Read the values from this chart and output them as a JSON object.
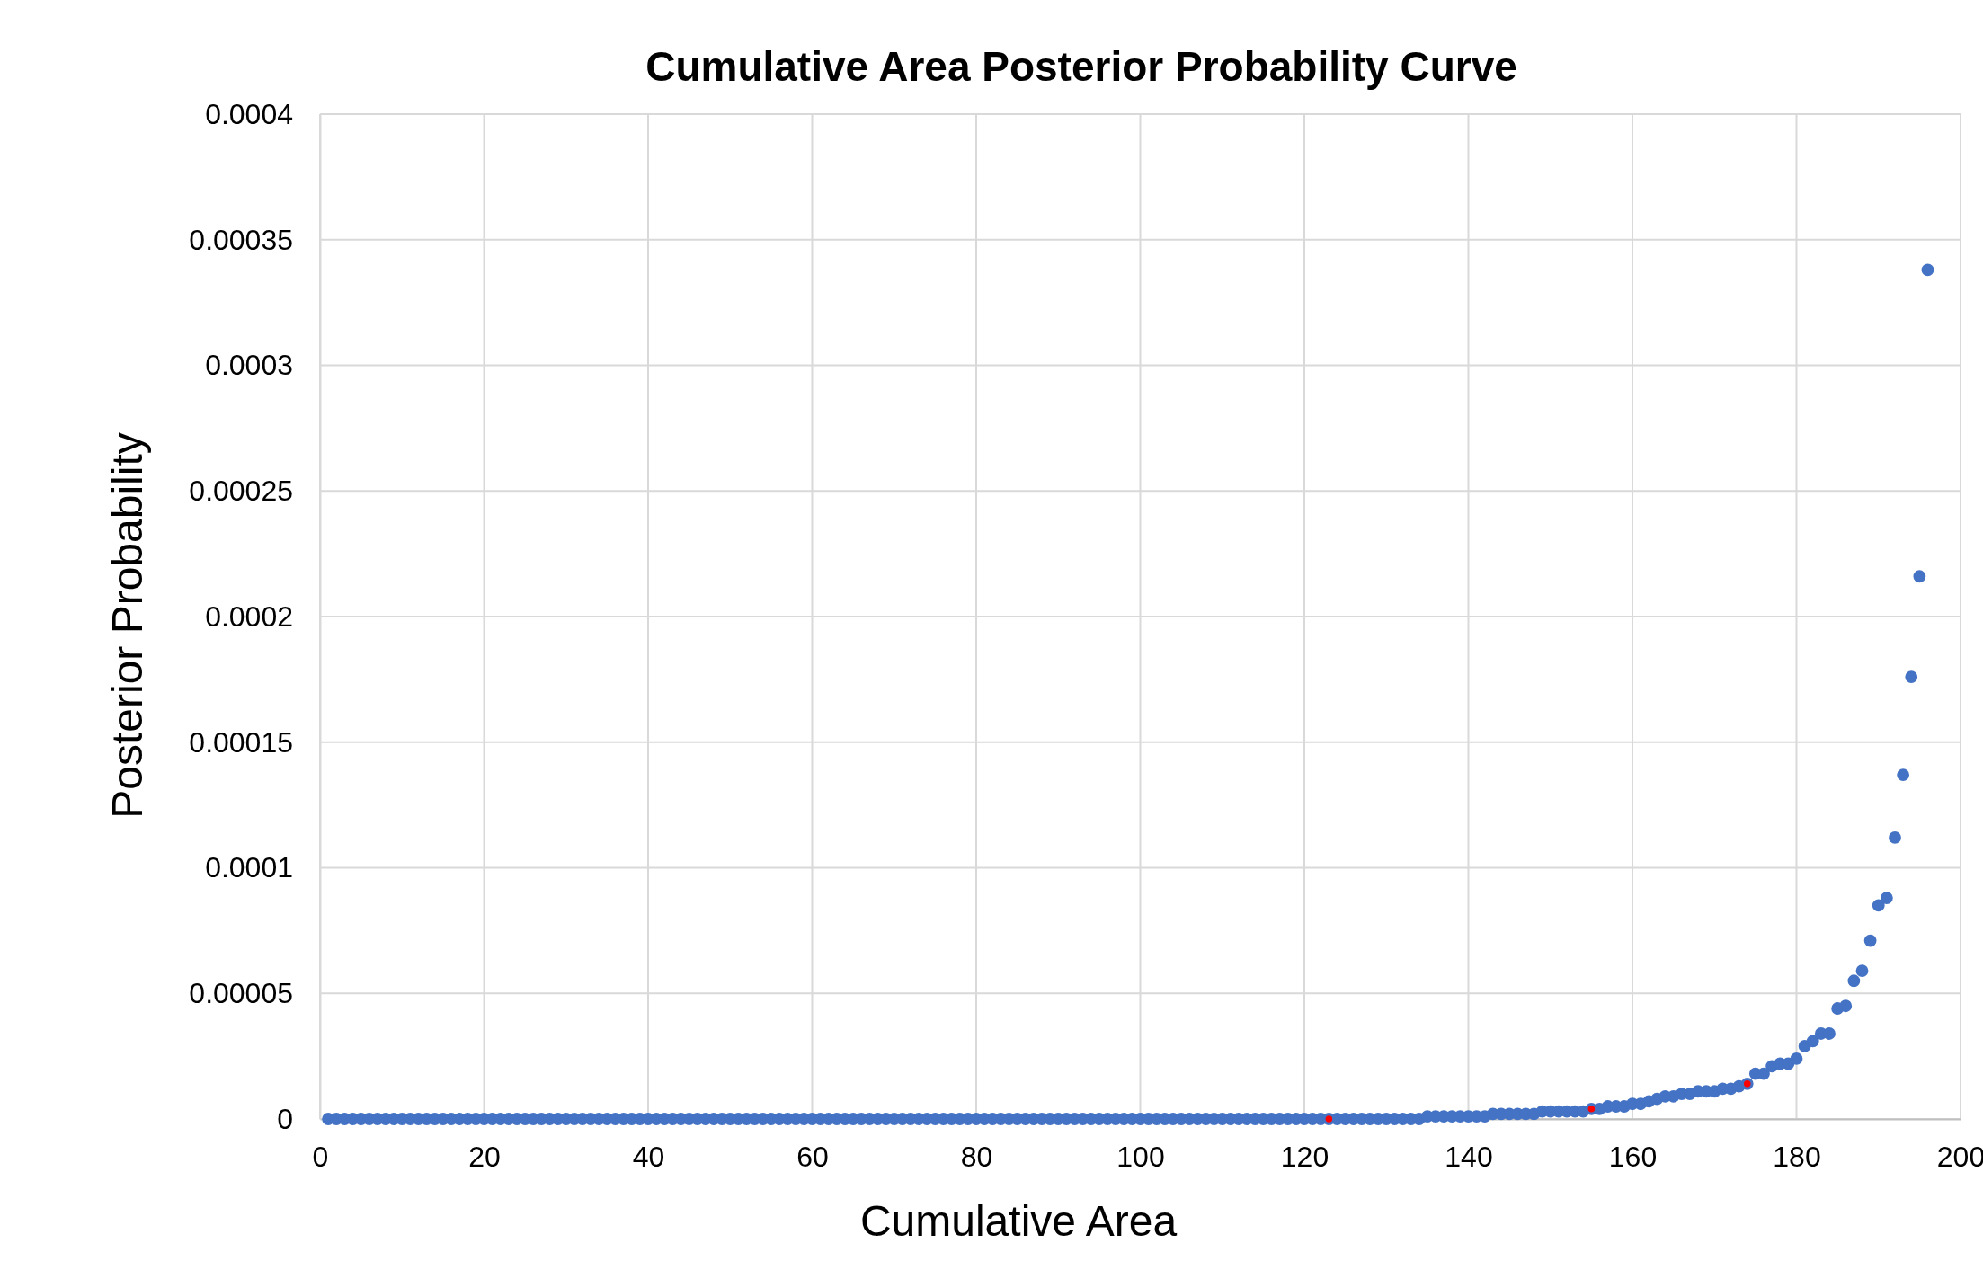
{
  "chart_data": {
    "type": "scatter",
    "title": "Cumulative Area Posterior Probability Curve",
    "xlabel": "Cumulative Area",
    "ylabel": "Posterior Probability",
    "xlim": [
      0,
      200
    ],
    "xticks": [
      0,
      20,
      40,
      60,
      80,
      100,
      120,
      140,
      160,
      180,
      200
    ],
    "ylim": [
      0,
      0.0004
    ],
    "yticks": [
      {
        "value": 0,
        "label": "0"
      },
      {
        "value": 5e-05,
        "label": "0.00005"
      },
      {
        "value": 0.0001,
        "label": "0.0001"
      },
      {
        "value": 0.00015,
        "label": "0.00015"
      },
      {
        "value": 0.0002,
        "label": "0.0002"
      },
      {
        "value": 0.00025,
        "label": "0.00025"
      },
      {
        "value": 0.0003,
        "label": "0.0003"
      },
      {
        "value": 0.00035,
        "label": "0.00035"
      },
      {
        "value": 0.0004,
        "label": "0.0004"
      }
    ],
    "grid": true,
    "marker": "circle",
    "series": [
      {
        "color": "#4472c4",
        "x": [
          1,
          2,
          3,
          4,
          5,
          6,
          7,
          8,
          9,
          10,
          11,
          12,
          13,
          14,
          15,
          16,
          17,
          18,
          19,
          20,
          21,
          22,
          23,
          24,
          25,
          26,
          27,
          28,
          29,
          30,
          31,
          32,
          33,
          34,
          35,
          36,
          37,
          38,
          39,
          40,
          41,
          42,
          43,
          44,
          45,
          46,
          47,
          48,
          49,
          50,
          51,
          52,
          53,
          54,
          55,
          56,
          57,
          58,
          59,
          60,
          61,
          62,
          63,
          64,
          65,
          66,
          67,
          68,
          69,
          70,
          71,
          72,
          73,
          74,
          75,
          76,
          77,
          78,
          79,
          80,
          81,
          82,
          83,
          84,
          85,
          86,
          87,
          88,
          89,
          90,
          91,
          92,
          93,
          94,
          95,
          96,
          97,
          98,
          99,
          100,
          101,
          102,
          103,
          104,
          105,
          106,
          107,
          108,
          109,
          110,
          111,
          112,
          113,
          114,
          115,
          116,
          117,
          118,
          119,
          120,
          121,
          122,
          123,
          124,
          125,
          126,
          127,
          128,
          129,
          130,
          131,
          132,
          133,
          134,
          135,
          136,
          137,
          138,
          139,
          140,
          141,
          142,
          143,
          144,
          145,
          146,
          147,
          148,
          149,
          150,
          151,
          152,
          153,
          154,
          155,
          156,
          157,
          158,
          159,
          160,
          161,
          162,
          163,
          164,
          165,
          166,
          167,
          168,
          169,
          170,
          171,
          172,
          173,
          174,
          175,
          176,
          177,
          178,
          179,
          180,
          181,
          182,
          183,
          184,
          185,
          186,
          187,
          188,
          189,
          190,
          191,
          192,
          193,
          194,
          195,
          196
        ],
        "values": [
          0,
          0,
          0,
          0,
          0,
          0,
          0,
          0,
          0,
          0,
          0,
          0,
          0,
          0,
          0,
          0,
          0,
          0,
          0,
          0,
          0,
          0,
          0,
          0,
          0,
          0,
          0,
          0,
          0,
          0,
          0,
          0,
          0,
          0,
          0,
          0,
          0,
          0,
          0,
          0,
          0,
          0,
          0,
          0,
          0,
          0,
          0,
          0,
          0,
          0,
          0,
          0,
          0,
          0,
          0,
          0,
          0,
          0,
          0,
          0,
          0,
          0,
          0,
          0,
          0,
          0,
          0,
          0,
          0,
          0,
          0,
          0,
          0,
          0,
          0,
          0,
          0,
          0,
          0,
          0,
          0,
          0,
          0,
          0,
          0,
          0,
          0,
          0,
          0,
          0,
          0,
          0,
          0,
          0,
          0,
          0,
          0,
          0,
          0,
          0,
          0,
          0,
          0,
          0,
          0,
          0,
          0,
          0,
          0,
          0,
          0,
          0,
          0,
          0,
          0,
          0,
          0,
          0,
          0,
          0,
          0,
          0,
          0,
          0,
          0,
          0,
          0,
          0,
          0,
          0,
          0,
          0,
          0,
          0,
          1e-06,
          1e-06,
          1e-06,
          1e-06,
          1e-06,
          1e-06,
          1e-06,
          1e-06,
          2e-06,
          2e-06,
          2e-06,
          2e-06,
          2e-06,
          2e-06,
          3e-06,
          3e-06,
          3e-06,
          3e-06,
          3e-06,
          3e-06,
          4e-06,
          4e-06,
          5e-06,
          5e-06,
          5e-06,
          6e-06,
          6e-06,
          7e-06,
          8e-06,
          9e-06,
          9e-06,
          1e-05,
          1e-05,
          1.1e-05,
          1.1e-05,
          1.1e-05,
          1.2e-05,
          1.2e-05,
          1.3e-05,
          1.4e-05,
          1.8e-05,
          1.8e-05,
          2.1e-05,
          2.2e-05,
          2.2e-05,
          2.4e-05,
          2.9e-05,
          3.1e-05,
          3.4e-05,
          3.4e-05,
          4.4e-05,
          4.5e-05,
          5.5e-05,
          5.9e-05,
          7.1e-05,
          8.5e-05,
          8.8e-05,
          0.000112,
          0.000137,
          0.000176,
          0.000216,
          0.000338
        ]
      },
      {
        "color": "#ff0000",
        "x": [
          123,
          155,
          174
        ],
        "values": [
          0,
          4e-06,
          1.4e-05
        ]
      }
    ]
  }
}
